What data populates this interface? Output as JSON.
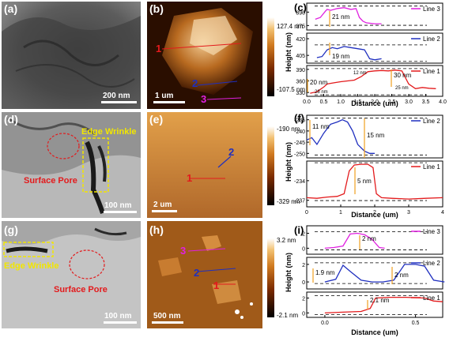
{
  "panels": {
    "a": {
      "letter": "(a)",
      "scale": "200 nm"
    },
    "b": {
      "letter": "(b)",
      "scale": "1 um",
      "cbar_max": "127.4 nm",
      "cbar_min": "-107.5 nm",
      "line_labels": [
        "1",
        "2",
        "3"
      ]
    },
    "c": {
      "letter": "(c)",
      "xlabel": "Distance (um)",
      "ylabel": "Height (nm)",
      "legend": [
        "Line 3",
        "Line 2",
        "Line 1"
      ],
      "annotations": [
        "21 nm",
        "19 nm",
        "30 nm",
        "20 nm",
        "12 nm",
        "25 nm",
        "28 nm"
      ]
    },
    "d": {
      "letter": "(d)",
      "scale": "100 nm",
      "edge_label": "Edge Wrinkle",
      "pore_label": "Surface Pore"
    },
    "e": {
      "letter": "(e)",
      "scale": "2 um",
      "cbar_max": "-190 nm",
      "cbar_min": "-329 nm",
      "line_labels": [
        "1",
        "2"
      ]
    },
    "f": {
      "letter": "(f)",
      "xlabel": "Distance (um)",
      "ylabel": "Height (nm)",
      "legend": [
        "Line 2",
        "Line 1"
      ],
      "annotations": [
        "11 nm",
        "15 nm",
        "5 nm"
      ]
    },
    "g": {
      "letter": "(g)",
      "scale": "100 nm",
      "edge_label": "Edge Wrinkle",
      "pore_label": "Surface Pore"
    },
    "h": {
      "letter": "(h)",
      "scale": "500 nm",
      "cbar_max": "3.2 nm",
      "cbar_min": "-2.1 nm",
      "line_labels": [
        "1",
        "2",
        "3"
      ]
    },
    "i": {
      "letter": "(i)",
      "xlabel": "Distance (um)",
      "ylabel": "Height (nm)",
      "legend": [
        "Line 3",
        "Line 2",
        "Line 1"
      ],
      "annotations": [
        "2 nm",
        "1.9 nm",
        "2 nm",
        "2.1 nm"
      ]
    }
  },
  "colors": {
    "line1": "#e31a1c",
    "line2": "#1f2fbf",
    "line3": "#e020e0",
    "yellow": "#f2e600",
    "arrow": "#f0a020"
  },
  "chart_data": [
    {
      "type": "line",
      "panel": "c",
      "xlabel": "Distance (um)",
      "ylabel": "Height (nm)",
      "x_ticks": [
        "0.0",
        "0.5",
        "1.0",
        "1.5",
        "2.0",
        "2.5",
        "3.0",
        "3.5",
        "4.0"
      ],
      "subplots": [
        {
          "name": "Line 3",
          "yticks": [
            "390",
            "375"
          ],
          "ylim": [
            370,
            400
          ],
          "x": [
            0.25,
            0.4,
            0.55,
            0.6,
            0.7,
            0.9,
            1.1,
            1.3,
            1.45,
            1.55,
            1.65,
            1.75,
            2.0,
            2.2
          ],
          "y": [
            382,
            384,
            391,
            393,
            392,
            394,
            395,
            393,
            394,
            384,
            380,
            378,
            377,
            377
          ]
        },
        {
          "name": "Line 2",
          "yticks": [
            "420",
            "405"
          ],
          "ylim": [
            398,
            425
          ],
          "x": [
            0.3,
            0.45,
            0.6,
            0.75,
            0.9,
            1.1,
            1.3,
            1.5,
            1.7,
            1.85,
            2.0,
            2.2
          ],
          "y": [
            403,
            404,
            410,
            412,
            411,
            413,
            412,
            411,
            410,
            402,
            401,
            402
          ]
        },
        {
          "name": "Line 1",
          "yticks": [
            "390",
            "360",
            "330"
          ],
          "ylim": [
            320,
            400
          ],
          "x": [
            0.1,
            0.3,
            0.5,
            0.6,
            0.8,
            1.0,
            1.2,
            1.4,
            1.6,
            1.8,
            2.0,
            2.2,
            2.4,
            2.6,
            2.8,
            3.0,
            3.2,
            3.4,
            3.6,
            3.8
          ],
          "y": [
            328,
            332,
            344,
            352,
            355,
            358,
            360,
            362,
            371,
            384,
            386,
            387,
            386,
            388,
            386,
            352,
            340,
            343,
            341,
            340
          ]
        }
      ]
    },
    {
      "type": "line",
      "panel": "f",
      "xlabel": "Distance (um)",
      "ylabel": "Height (nm)",
      "x_ticks": [
        "0",
        "1",
        "2",
        "3",
        "4"
      ],
      "subplots": [
        {
          "name": "Line 2",
          "yticks": [
            "-235",
            "-240",
            "-245",
            "-250"
          ],
          "ylim": [
            -252,
            -233
          ],
          "x": [
            0.0,
            0.15,
            0.3,
            0.5,
            0.7,
            0.9,
            1.05,
            1.2,
            1.35,
            1.5,
            1.7,
            1.85,
            2.0
          ],
          "y": [
            -244,
            -243,
            -246,
            -241,
            -237,
            -236,
            -235,
            -236,
            -240,
            -246,
            -249,
            -250,
            -250
          ]
        },
        {
          "name": "Line 1",
          "yticks": [
            "-234",
            "-237"
          ],
          "ylim": [
            -238,
            -231
          ],
          "x": [
            0.0,
            0.3,
            0.6,
            0.9,
            1.1,
            1.25,
            1.4,
            1.6,
            1.8,
            1.95,
            2.05,
            2.2,
            2.5,
            3.0,
            3.5,
            4.0
          ],
          "y": [
            -236.6,
            -236.7,
            -236.5,
            -236.4,
            -236.0,
            -232.5,
            -231.6,
            -231.5,
            -231.5,
            -232.0,
            -236.0,
            -236.6,
            -236.7,
            -236.8,
            -236.7,
            -236.6
          ]
        }
      ]
    },
    {
      "type": "line",
      "panel": "i",
      "xlabel": "Distance (um)",
      "ylabel": "Height (nm)",
      "x_ticks": [
        "0.0",
        "0.5"
      ],
      "subplots": [
        {
          "name": "Line 3",
          "yticks": [
            "2",
            "0"
          ],
          "ylim": [
            -0.8,
            3.0
          ],
          "x": [
            0.0,
            0.05,
            0.1,
            0.14,
            0.18,
            0.22,
            0.26,
            0.3,
            0.33
          ],
          "y": [
            0.0,
            0.1,
            0.3,
            1.9,
            2.0,
            1.8,
            1.2,
            0.1,
            0.0
          ]
        },
        {
          "name": "Line 2",
          "yticks": [
            "2",
            "0"
          ],
          "ylim": [
            -0.8,
            2.8
          ],
          "x": [
            0.0,
            0.06,
            0.1,
            0.14,
            0.2,
            0.26,
            0.32,
            0.38,
            0.44,
            0.5,
            0.55,
            0.6,
            0.66
          ],
          "y": [
            0.0,
            0.3,
            1.9,
            1.2,
            0.2,
            0.0,
            0.0,
            0.2,
            2.0,
            2.0,
            1.8,
            0.2,
            0.0
          ]
        },
        {
          "name": "Line 1",
          "yticks": [
            "2",
            "0"
          ],
          "ylim": [
            -0.6,
            2.8
          ],
          "x": [
            0.0,
            0.1,
            0.2,
            0.25,
            0.28,
            0.35,
            0.45,
            0.55,
            0.6,
            0.65
          ],
          "y": [
            0.0,
            0.1,
            0.2,
            0.6,
            2.0,
            2.1,
            2.1,
            2.0,
            1.6,
            1.5
          ]
        }
      ]
    }
  ]
}
